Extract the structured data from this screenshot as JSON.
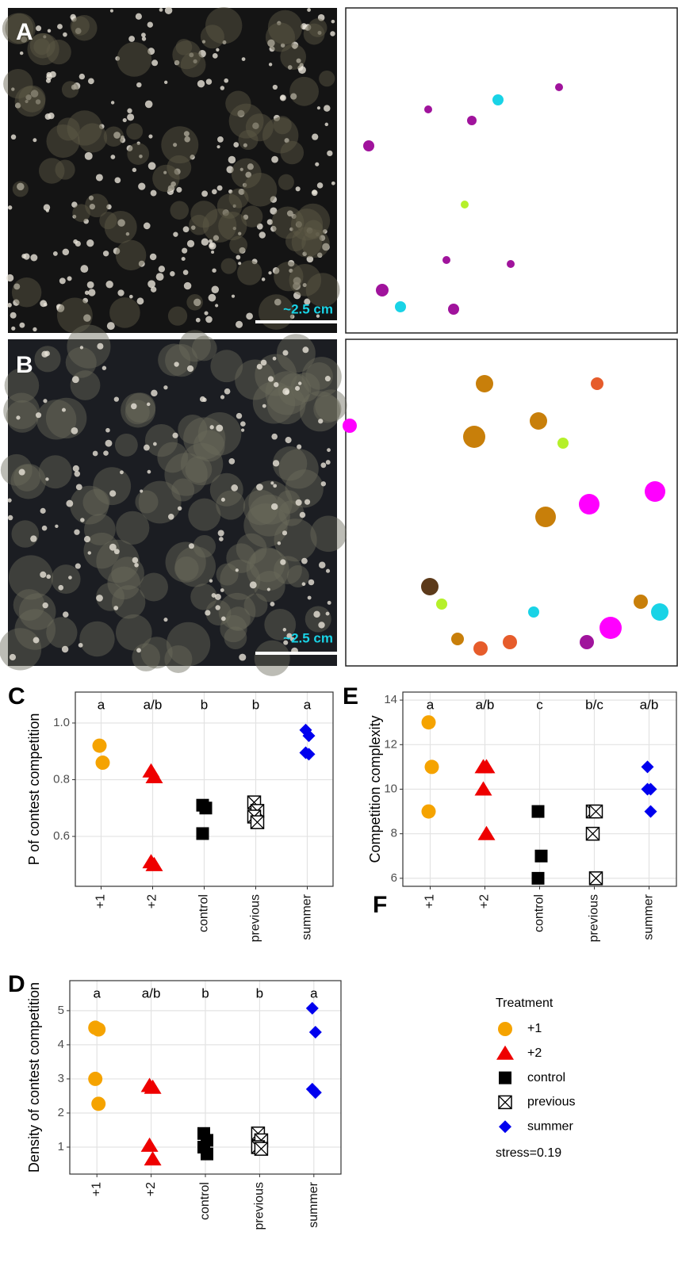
{
  "photos": [
    {
      "label": "A",
      "scale_label": "~2.5 cm"
    },
    {
      "label": "B",
      "scale_label": "~2.5 cm"
    }
  ],
  "legend": {
    "panel_label": "F",
    "title": "Treatment",
    "note": "stress=0.19",
    "entries": [
      {
        "name": "+1",
        "color": "#f5a300",
        "marker": "circle"
      },
      {
        "name": "+2",
        "color": "#ee0000",
        "marker": "triangle"
      },
      {
        "name": "control",
        "color": "#000000",
        "marker": "square"
      },
      {
        "name": "previous",
        "color": "#000000",
        "marker": "crossed-square"
      },
      {
        "name": "summer",
        "color": "#0000ee",
        "marker": "diamond"
      }
    ]
  },
  "chart_data": [
    {
      "type": "strip",
      "panel_label": "C",
      "y_label": "P of contest competition",
      "categories": [
        "+1",
        "+2",
        "control",
        "previous",
        "summer"
      ],
      "letters": [
        "a",
        "a/b",
        "b",
        "b",
        "a"
      ],
      "groups": [
        {
          "values": [
            0.92,
            0.86
          ]
        },
        {
          "values": [
            0.83,
            0.81,
            0.51,
            0.5
          ]
        },
        {
          "values": [
            0.71,
            0.7,
            0.61
          ]
        },
        {
          "values": [
            0.72,
            0.69,
            0.67,
            0.65
          ]
        },
        {
          "values": [
            0.975,
            0.955,
            0.895,
            0.89
          ]
        }
      ],
      "ylim": [
        0.424,
        1.109
      ],
      "yticks": [
        0.6,
        0.8,
        {
          "value": 1.0,
          "label": "1.0"
        }
      ],
      "grid": true
    },
    {
      "type": "strip",
      "panel_label": "D",
      "y_label": "Density of contest competition",
      "categories": [
        "+1",
        "+2",
        "control",
        "previous",
        "summer"
      ],
      "letters": [
        "a",
        "a/b",
        "b",
        "b",
        "a"
      ],
      "groups": [
        {
          "values": [
            4.5,
            4.45,
            3.0,
            2.27
          ]
        },
        {
          "values": [
            2.8,
            2.75,
            1.05,
            0.65
          ]
        },
        {
          "values": [
            1.4,
            1.2,
            1.0,
            0.8
          ]
        },
        {
          "values": [
            1.4,
            1.2,
            1.0,
            0.95
          ]
        },
        {
          "values": [
            5.07,
            4.37,
            2.7,
            2.6
          ]
        }
      ],
      "ylim": [
        0.21,
        5.88
      ],
      "yticks": [
        1,
        2,
        3,
        4,
        5
      ],
      "grid": true
    },
    {
      "type": "strip",
      "panel_label": "E",
      "y_label": "Competition complexity",
      "categories": [
        "+1",
        "+2",
        "control",
        "previous",
        "summer"
      ],
      "letters": [
        "a",
        "a/b",
        "c",
        "b/c",
        "a/b"
      ],
      "groups": [
        {
          "values": [
            13,
            11,
            9
          ]
        },
        {
          "values": [
            11,
            11,
            10,
            8
          ]
        },
        {
          "values": [
            9,
            7,
            6
          ]
        },
        {
          "values": [
            9,
            9,
            8,
            6
          ]
        },
        {
          "values": [
            11,
            10,
            10,
            9
          ]
        }
      ],
      "ylim": [
        5.64,
        14.36
      ],
      "yticks": [
        6,
        8,
        10,
        12,
        14
      ],
      "grid": true
    }
  ]
}
